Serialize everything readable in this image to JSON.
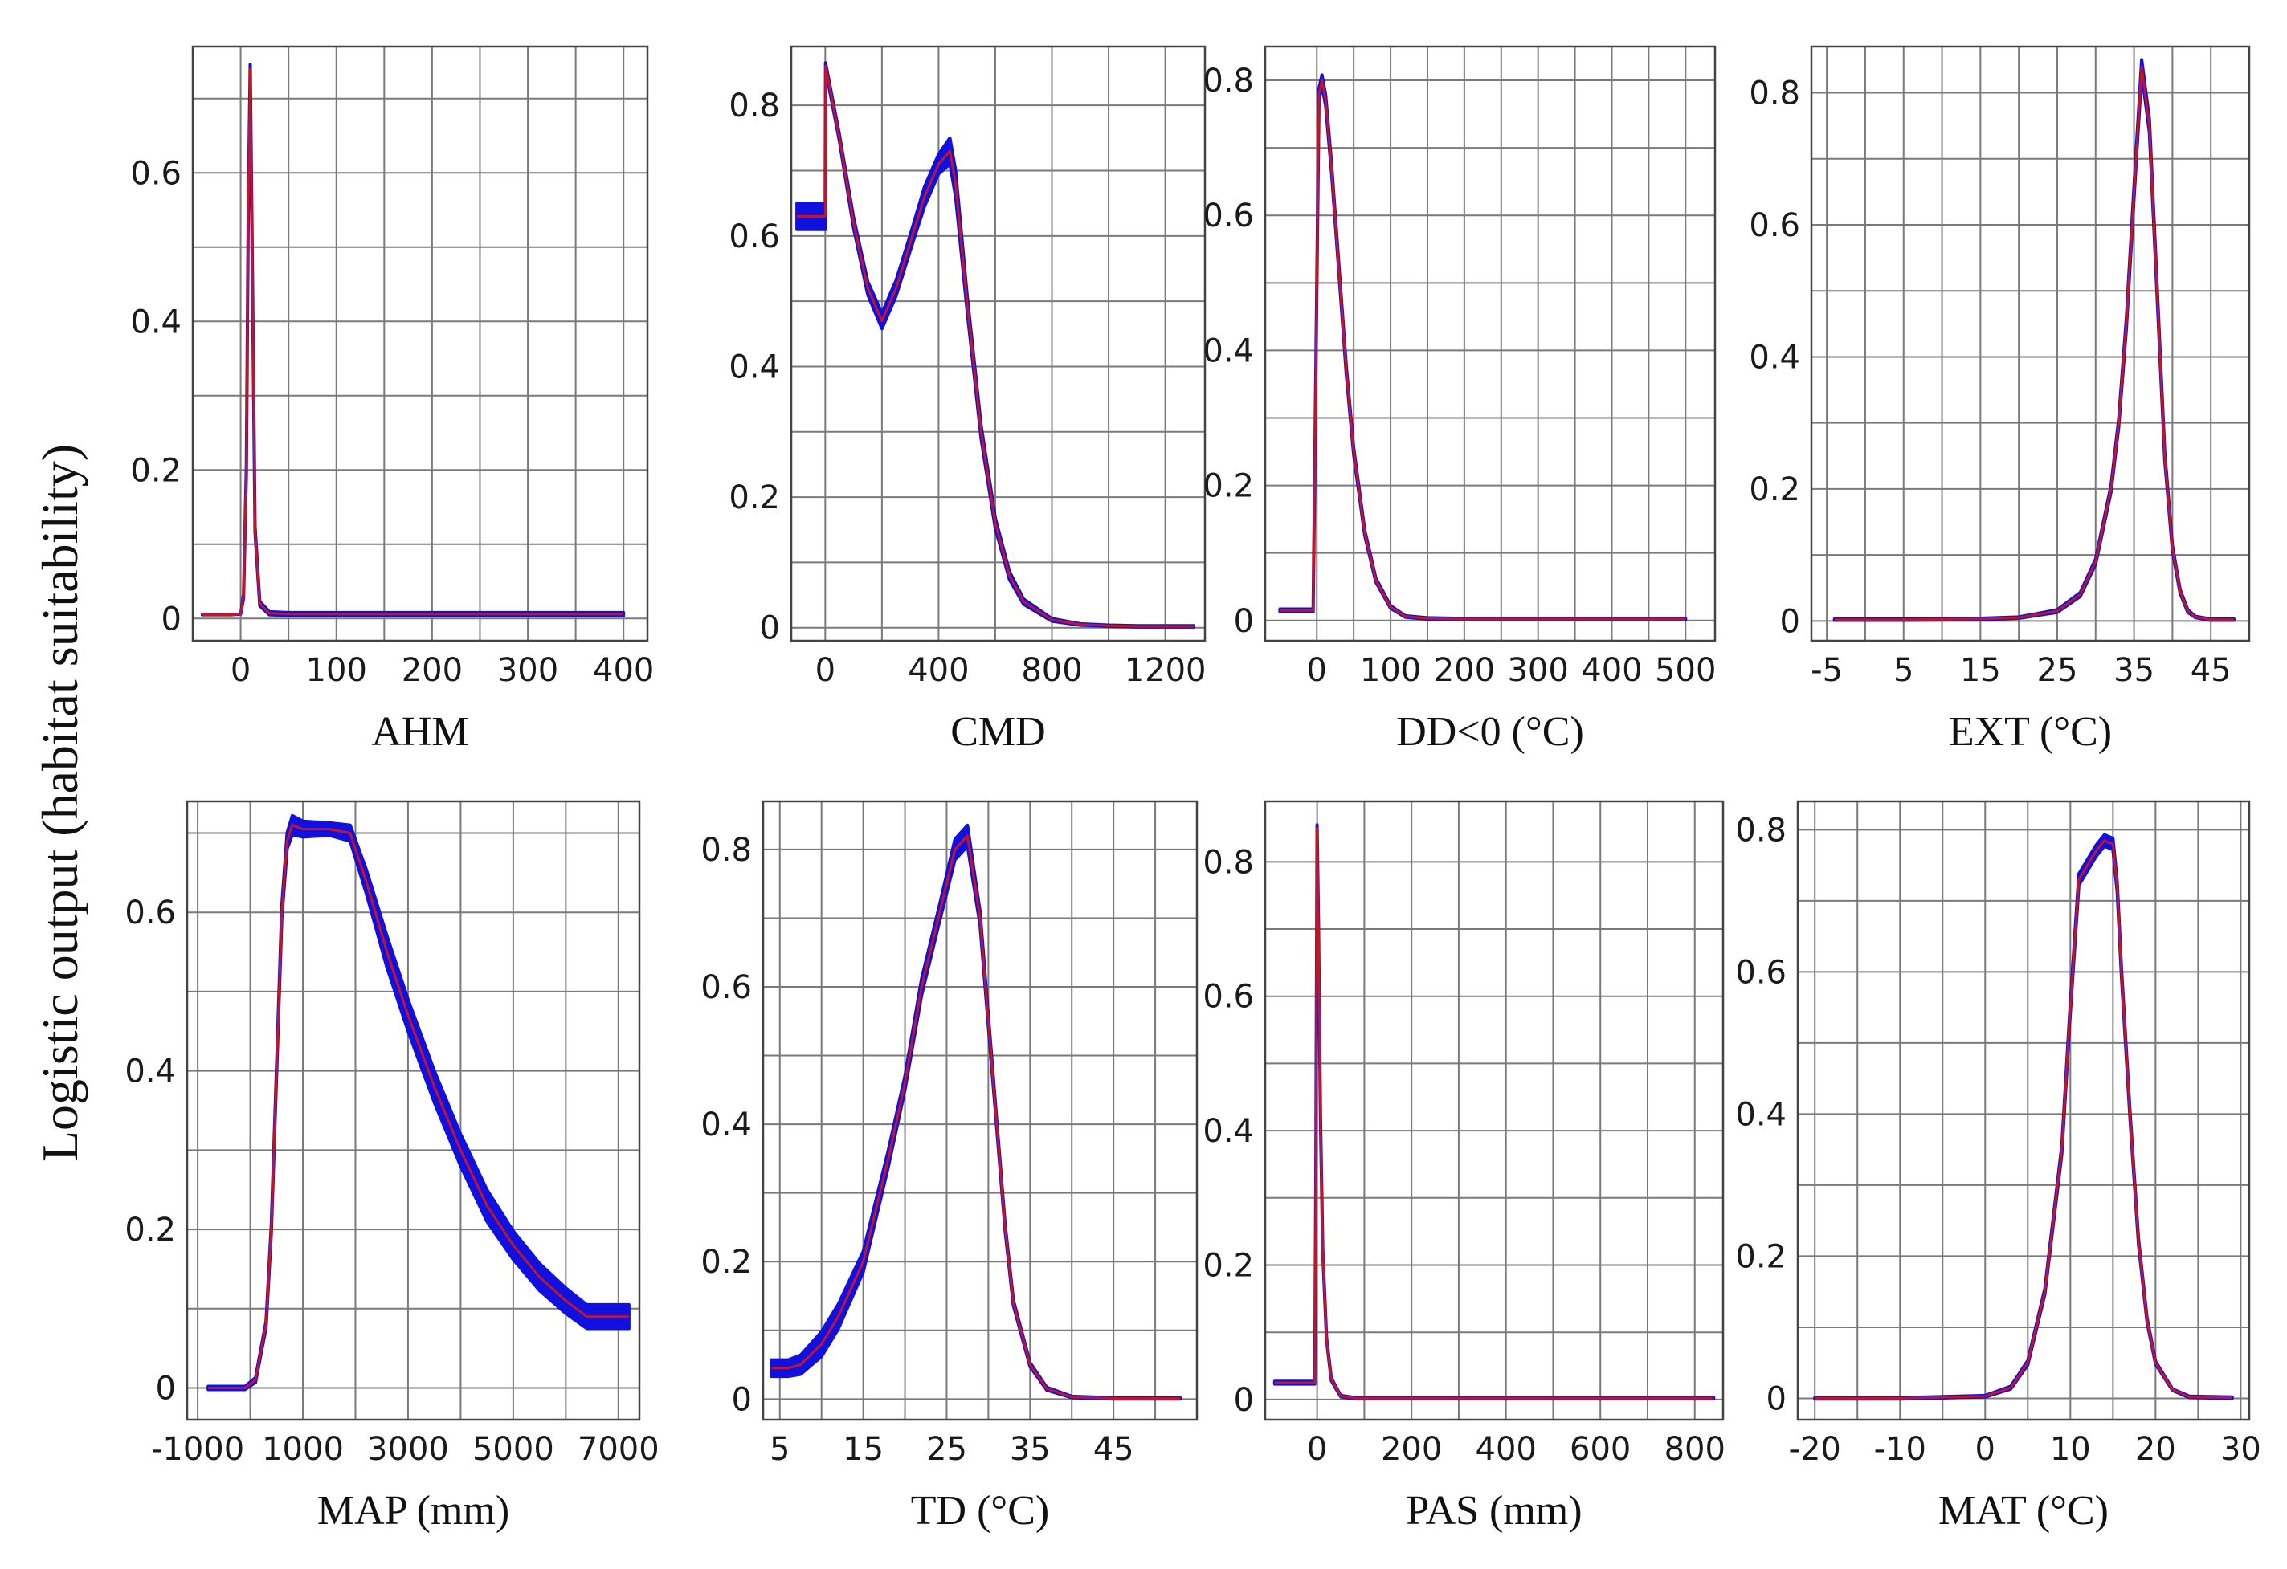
{
  "figure": {
    "ylabel": "Logistic output (habitat suitability)"
  },
  "colors": {
    "band": "#1010e0",
    "line": "#c4142a",
    "grid": "#7a7a7a",
    "frame": "#444444"
  },
  "chart_data": [
    {
      "type": "line",
      "xlabel": "AHM",
      "xlim": [
        -50,
        425
      ],
      "ylim": [
        -0.03,
        0.77
      ],
      "xticks": [
        0,
        100,
        200,
        300,
        400
      ],
      "xtick_labels": [
        "0",
        "100",
        "200",
        "300",
        "400"
      ],
      "yticks": [
        0,
        0.2,
        0.4,
        0.6
      ],
      "ytick_labels": [
        "0",
        "0.2",
        "0.4",
        "0.6"
      ],
      "grid_x": [
        -50,
        0,
        50,
        100,
        150,
        200,
        250,
        300,
        350,
        400,
        425
      ],
      "grid_y": [
        0,
        0.1,
        0.2,
        0.3,
        0.4,
        0.5,
        0.6,
        0.7
      ],
      "x": [
        -40,
        -10,
        0,
        3,
        6,
        8,
        10,
        12,
        15,
        20,
        30,
        50,
        100,
        200,
        300,
        400
      ],
      "y": [
        0.005,
        0.005,
        0.006,
        0.03,
        0.2,
        0.55,
        0.74,
        0.5,
        0.12,
        0.02,
        0.007,
        0.006,
        0.006,
        0.006,
        0.006,
        0.006
      ],
      "band": [
        0,
        0,
        0,
        0.003,
        0.005,
        0.005,
        0.006,
        0.005,
        0.004,
        0.003,
        0.002,
        0.002,
        0.002,
        0.002,
        0.002,
        0.002
      ]
    },
    {
      "type": "line",
      "xlabel": "CMD",
      "xlim": [
        -120,
        1340
      ],
      "ylim": [
        -0.02,
        0.89
      ],
      "xticks": [
        0,
        400,
        800,
        1200
      ],
      "xtick_labels": [
        "0",
        "400",
        "800",
        "1200"
      ],
      "yticks": [
        0,
        0.2,
        0.4,
        0.6,
        0.8
      ],
      "ytick_labels": [
        "0",
        "0.2",
        "0.4",
        "0.6",
        "0.8"
      ],
      "grid_x": [
        -120,
        0,
        200,
        400,
        600,
        800,
        1000,
        1200,
        1340
      ],
      "grid_y": [
        0,
        0.1,
        0.2,
        0.3,
        0.4,
        0.5,
        0.6,
        0.7,
        0.8
      ],
      "x": [
        -100,
        -10,
        0,
        1,
        50,
        100,
        150,
        200,
        250,
        300,
        350,
        400,
        440,
        460,
        500,
        550,
        600,
        650,
        700,
        800,
        900,
        1000,
        1100,
        1200,
        1300
      ],
      "y": [
        0.63,
        0.63,
        0.63,
        0.86,
        0.75,
        0.62,
        0.52,
        0.47,
        0.52,
        0.59,
        0.66,
        0.71,
        0.73,
        0.68,
        0.5,
        0.3,
        0.16,
        0.08,
        0.04,
        0.012,
        0.005,
        0.003,
        0.002,
        0.002,
        0.002
      ],
      "band": [
        0.02,
        0.02,
        0.02,
        0.005,
        0.005,
        0.008,
        0.01,
        0.012,
        0.012,
        0.012,
        0.015,
        0.015,
        0.02,
        0.02,
        0.012,
        0.01,
        0.008,
        0.006,
        0.004,
        0.002,
        0.001,
        0.001,
        0.001,
        0.001,
        0.001
      ]
    },
    {
      "type": "line",
      "xlabel": "DD<0 (°C)",
      "xlim": [
        -70,
        540
      ],
      "ylim": [
        -0.03,
        0.85
      ],
      "xticks": [
        0,
        100,
        200,
        300,
        400,
        500
      ],
      "xtick_labels": [
        "0",
        "100",
        "200",
        "300",
        "400",
        "500"
      ],
      "yticks": [
        0,
        0.2,
        0.4,
        0.6,
        0.8
      ],
      "ytick_labels": [
        "0",
        "0.2",
        "0.4",
        "0.6",
        "0.8"
      ],
      "grid_x": [
        -70,
        0,
        50,
        100,
        150,
        200,
        250,
        300,
        350,
        400,
        450,
        500,
        540
      ],
      "grid_y": [
        0,
        0.1,
        0.2,
        0.3,
        0.4,
        0.5,
        0.6,
        0.7,
        0.8
      ],
      "x": [
        -50,
        -10,
        -5,
        0,
        3,
        7,
        12,
        20,
        30,
        40,
        50,
        65,
        80,
        100,
        120,
        150,
        200,
        300,
        400,
        500
      ],
      "y": [
        0.015,
        0.015,
        0.015,
        0.5,
        0.78,
        0.8,
        0.77,
        0.67,
        0.52,
        0.37,
        0.25,
        0.13,
        0.06,
        0.02,
        0.006,
        0.003,
        0.002,
        0.002,
        0.002,
        0.002
      ],
      "band": [
        0.002,
        0.002,
        0.002,
        0.008,
        0.008,
        0.008,
        0.008,
        0.007,
        0.006,
        0.006,
        0.005,
        0.004,
        0.003,
        0.002,
        0.001,
        0.001,
        0.001,
        0.001,
        0.001,
        0.001
      ]
    },
    {
      "type": "line",
      "xlabel": "EXT (°C)",
      "xlim": [
        -7,
        50
      ],
      "ylim": [
        -0.03,
        0.87
      ],
      "xticks": [
        -5,
        5,
        15,
        25,
        35,
        45
      ],
      "xtick_labels": [
        "-5",
        "5",
        "15",
        "25",
        "35",
        "45"
      ],
      "yticks": [
        0,
        0.2,
        0.4,
        0.6,
        0.8
      ],
      "ytick_labels": [
        "0",
        "0.2",
        "0.4",
        "0.6",
        "0.8"
      ],
      "grid_x": [
        -7,
        -5,
        0,
        5,
        10,
        15,
        20,
        25,
        30,
        35,
        40,
        45,
        50
      ],
      "grid_y": [
        0,
        0.1,
        0.2,
        0.3,
        0.4,
        0.5,
        0.6,
        0.7,
        0.8
      ],
      "x": [
        -4,
        5,
        15,
        20,
        25,
        28,
        30,
        32,
        33,
        34,
        35,
        36,
        37,
        38,
        39,
        40,
        41,
        42,
        43,
        45,
        48
      ],
      "y": [
        0.002,
        0.002,
        0.003,
        0.005,
        0.015,
        0.04,
        0.09,
        0.2,
        0.3,
        0.45,
        0.65,
        0.84,
        0.75,
        0.5,
        0.25,
        0.11,
        0.045,
        0.015,
        0.006,
        0.002,
        0.002
      ],
      "band": [
        0.001,
        0.001,
        0.001,
        0.001,
        0.002,
        0.003,
        0.004,
        0.005,
        0.006,
        0.008,
        0.009,
        0.01,
        0.01,
        0.008,
        0.006,
        0.004,
        0.003,
        0.002,
        0.001,
        0.001,
        0.001
      ]
    },
    {
      "type": "line",
      "xlabel": "MAP (mm)",
      "xlim": [
        -1200,
        7400
      ],
      "ylim": [
        -0.04,
        0.74
      ],
      "xticks": [
        -1000,
        1000,
        3000,
        5000,
        7000
      ],
      "xtick_labels": [
        "-1000",
        "1000",
        "3000",
        "5000",
        "7000"
      ],
      "yticks": [
        0,
        0.2,
        0.4,
        0.6
      ],
      "ytick_labels": [
        "0",
        "0.2",
        "0.4",
        "0.6"
      ],
      "grid_x": [
        -1200,
        -1000,
        0,
        1000,
        2000,
        3000,
        4000,
        5000,
        6000,
        7000,
        7400
      ],
      "grid_y": [
        0,
        0.1,
        0.2,
        0.3,
        0.4,
        0.5,
        0.6,
        0.7
      ],
      "x": [
        -800,
        -100,
        100,
        300,
        400,
        500,
        600,
        700,
        800,
        1000,
        1500,
        1900,
        2200,
        2600,
        3000,
        3500,
        4000,
        4500,
        5000,
        5500,
        6000,
        6400,
        6500,
        7200
      ],
      "y": [
        0.0,
        0.0,
        0.01,
        0.08,
        0.2,
        0.4,
        0.6,
        0.69,
        0.71,
        0.705,
        0.705,
        0.7,
        0.64,
        0.55,
        0.47,
        0.38,
        0.3,
        0.23,
        0.18,
        0.14,
        0.11,
        0.09,
        0.09,
        0.09
      ],
      "band": [
        0.002,
        0.002,
        0.003,
        0.004,
        0.005,
        0.006,
        0.008,
        0.01,
        0.012,
        0.01,
        0.008,
        0.01,
        0.015,
        0.02,
        0.02,
        0.02,
        0.02,
        0.02,
        0.018,
        0.017,
        0.016,
        0.015,
        0.015,
        0.015
      ]
    },
    {
      "type": "line",
      "xlabel": "TD (°C)",
      "xlim": [
        3,
        55
      ],
      "ylim": [
        -0.03,
        0.87
      ],
      "xticks": [
        5,
        15,
        25,
        35,
        45
      ],
      "xtick_labels": [
        "5",
        "15",
        "25",
        "35",
        "45"
      ],
      "yticks": [
        0,
        0.2,
        0.4,
        0.6,
        0.8
      ],
      "ytick_labels": [
        "0",
        "0.2",
        "0.4",
        "0.6",
        "0.8"
      ],
      "grid_x": [
        3,
        5,
        10,
        15,
        20,
        25,
        30,
        35,
        40,
        45,
        50,
        55
      ],
      "grid_y": [
        0,
        0.1,
        0.2,
        0.3,
        0.4,
        0.5,
        0.6,
        0.7,
        0.8
      ],
      "x": [
        4,
        6,
        7.5,
        10,
        12,
        15,
        18,
        20,
        22,
        24,
        26,
        27.5,
        29,
        30,
        31,
        32,
        33,
        35,
        37,
        40,
        45,
        50,
        53
      ],
      "y": [
        0.045,
        0.045,
        0.05,
        0.08,
        0.12,
        0.2,
        0.35,
        0.46,
        0.6,
        0.7,
        0.8,
        0.82,
        0.7,
        0.55,
        0.4,
        0.25,
        0.14,
        0.05,
        0.015,
        0.003,
        0.001,
        0.001,
        0.001
      ],
      "band": [
        0.012,
        0.012,
        0.014,
        0.018,
        0.018,
        0.015,
        0.012,
        0.01,
        0.012,
        0.012,
        0.015,
        0.015,
        0.01,
        0.008,
        0.006,
        0.005,
        0.004,
        0.003,
        0.002,
        0.001,
        0.001,
        0.001,
        0.001
      ]
    },
    {
      "type": "line",
      "xlabel": "PAS (mm)",
      "xlim": [
        -110,
        860
      ],
      "ylim": [
        -0.03,
        0.89
      ],
      "xticks": [
        0,
        200,
        400,
        600,
        800
      ],
      "xtick_labels": [
        "0",
        "200",
        "400",
        "600",
        "800"
      ],
      "yticks": [
        0,
        0.2,
        0.4,
        0.6,
        0.8
      ],
      "ytick_labels": [
        "0",
        "0.2",
        "0.4",
        "0.6",
        "0.8"
      ],
      "grid_x": [
        -110,
        0,
        100,
        200,
        300,
        400,
        500,
        600,
        700,
        800,
        860
      ],
      "grid_y": [
        0,
        0.1,
        0.2,
        0.3,
        0.4,
        0.5,
        0.6,
        0.7,
        0.8
      ],
      "x": [
        -90,
        -10,
        -5,
        -3,
        0,
        3,
        7,
        12,
        20,
        30,
        50,
        80,
        100,
        200,
        400,
        600,
        800,
        840
      ],
      "y": [
        0.025,
        0.025,
        0.025,
        0.3,
        0.85,
        0.7,
        0.42,
        0.22,
        0.09,
        0.03,
        0.005,
        0.002,
        0.002,
        0.002,
        0.002,
        0.002,
        0.002,
        0.002
      ],
      "band": [
        0.002,
        0.002,
        0.002,
        0.004,
        0.005,
        0.005,
        0.004,
        0.003,
        0.002,
        0.002,
        0.001,
        0.001,
        0.001,
        0.001,
        0.001,
        0.001,
        0.001,
        0.001
      ]
    },
    {
      "type": "line",
      "xlabel": "MAT (°C)",
      "xlim": [
        -22,
        31
      ],
      "ylim": [
        -0.03,
        0.84
      ],
      "xticks": [
        -20,
        -10,
        0,
        10,
        20,
        30
      ],
      "xtick_labels": [
        "-20",
        "-10",
        "0",
        "10",
        "20",
        "30"
      ],
      "yticks": [
        0,
        0.2,
        0.4,
        0.6,
        0.8
      ],
      "ytick_labels": [
        "0",
        "0.2",
        "0.4",
        "0.6",
        "0.8"
      ],
      "grid_x": [
        -22,
        -20,
        -15,
        -10,
        -5,
        0,
        5,
        10,
        15,
        20,
        25,
        30,
        31
      ],
      "grid_y": [
        0,
        0.1,
        0.2,
        0.3,
        0.4,
        0.5,
        0.6,
        0.7,
        0.8
      ],
      "x": [
        -20,
        -10,
        0,
        3,
        5,
        7,
        9,
        10,
        11,
        12,
        13,
        14,
        15,
        15.5,
        16,
        17,
        18,
        19,
        20,
        22,
        24,
        29
      ],
      "y": [
        0.0,
        0.0,
        0.003,
        0.015,
        0.05,
        0.15,
        0.35,
        0.55,
        0.73,
        0.75,
        0.77,
        0.785,
        0.78,
        0.72,
        0.6,
        0.4,
        0.22,
        0.11,
        0.05,
        0.012,
        0.002,
        0.001
      ],
      "band": [
        0.001,
        0.001,
        0.001,
        0.002,
        0.003,
        0.004,
        0.006,
        0.007,
        0.008,
        0.008,
        0.008,
        0.008,
        0.008,
        0.007,
        0.006,
        0.005,
        0.004,
        0.003,
        0.002,
        0.001,
        0.001,
        0.001
      ]
    }
  ]
}
